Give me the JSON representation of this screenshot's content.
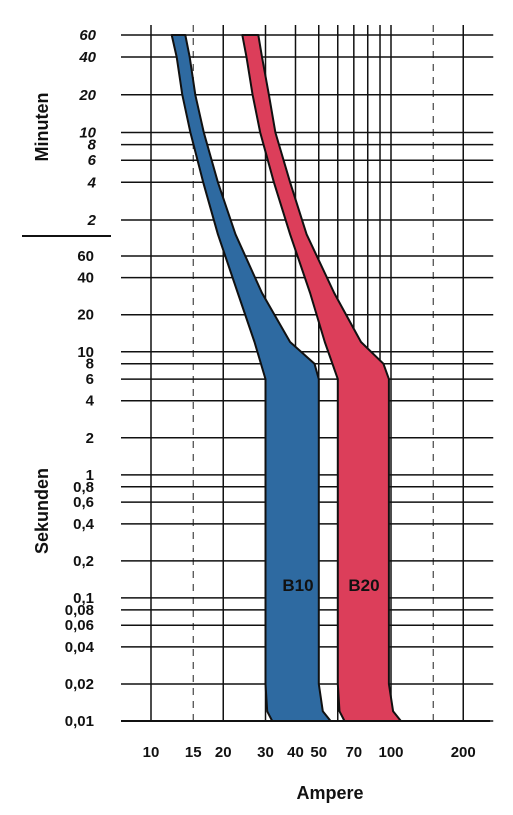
{
  "chart_data": {
    "type": "area",
    "title": "",
    "xlabel": "Ampere",
    "ylabel_top": "Minuten",
    "ylabel_bottom": "Sekunden",
    "x_scale": "log",
    "y_scale": "log",
    "xlim": [
      8,
      240
    ],
    "x_ticks": [
      {
        "value": 10,
        "label": "10"
      },
      {
        "value": 15,
        "label": "15"
      },
      {
        "value": 20,
        "label": "20"
      },
      {
        "value": 30,
        "label": "30"
      },
      {
        "value": 40,
        "label": "40"
      },
      {
        "value": 50,
        "label": "50"
      },
      {
        "value": 70,
        "label": "70"
      },
      {
        "value": 100,
        "label": "100"
      },
      {
        "value": 200,
        "label": "200"
      }
    ],
    "x_grid_solid": [
      10,
      20,
      30,
      40,
      50,
      60,
      70,
      80,
      90,
      100,
      200
    ],
    "x_grid_dashed": [
      15,
      150
    ],
    "y_ticks_minutes": [
      {
        "value": 3600,
        "label": "60"
      },
      {
        "value": 2400,
        "label": "40"
      },
      {
        "value": 1200,
        "label": "20"
      },
      {
        "value": 600,
        "label": "10"
      },
      {
        "value": 480,
        "label": "8"
      },
      {
        "value": 360,
        "label": "6"
      },
      {
        "value": 240,
        "label": "4"
      },
      {
        "value": 120,
        "label": "2"
      }
    ],
    "y_ticks_seconds": [
      {
        "value": 60,
        "label": "60"
      },
      {
        "value": 40,
        "label": "40"
      },
      {
        "value": 20,
        "label": "20"
      },
      {
        "value": 10,
        "label": "10"
      },
      {
        "value": 8,
        "label": "8"
      },
      {
        "value": 6,
        "label": "6"
      },
      {
        "value": 4,
        "label": "4"
      },
      {
        "value": 2,
        "label": "2"
      },
      {
        "value": 1,
        "label": "1"
      },
      {
        "value": 0.8,
        "label": "0,8"
      },
      {
        "value": 0.6,
        "label": "0,6"
      },
      {
        "value": 0.4,
        "label": "0,4"
      },
      {
        "value": 0.2,
        "label": "0,2"
      },
      {
        "value": 0.1,
        "label": "0,1"
      },
      {
        "value": 0.08,
        "label": "0,08"
      },
      {
        "value": 0.06,
        "label": "0,06"
      },
      {
        "value": 0.04,
        "label": "0,04"
      },
      {
        "value": 0.02,
        "label": "0,02"
      },
      {
        "value": 0.01,
        "label": "0,01"
      }
    ],
    "ylim_seconds": [
      0.01,
      3600
    ],
    "grid": true,
    "series": [
      {
        "name": "B10",
        "color": "#2e6aa1",
        "left_edge": [
          [
            12.2,
            3600
          ],
          [
            12.8,
            2400
          ],
          [
            13.5,
            1200
          ],
          [
            14.6,
            600
          ],
          [
            16.5,
            240
          ],
          [
            19.0,
            90
          ],
          [
            23.0,
            30
          ],
          [
            27.0,
            12
          ],
          [
            30.0,
            6
          ],
          [
            30.0,
            0.02
          ],
          [
            30.5,
            0.012
          ],
          [
            32.0,
            0.01
          ]
        ],
        "right_edge": [
          [
            13.9,
            3600
          ],
          [
            14.5,
            2400
          ],
          [
            15.3,
            1200
          ],
          [
            16.6,
            600
          ],
          [
            19.0,
            240
          ],
          [
            22.5,
            90
          ],
          [
            29.0,
            30
          ],
          [
            38.0,
            12
          ],
          [
            48.0,
            8
          ],
          [
            50.0,
            6
          ],
          [
            50.0,
            0.02
          ],
          [
            52.0,
            0.012
          ],
          [
            56.0,
            0.01
          ]
        ]
      },
      {
        "name": "B20",
        "color": "#dc3e5a",
        "left_edge": [
          [
            24.0,
            3600
          ],
          [
            25.0,
            2400
          ],
          [
            26.5,
            1200
          ],
          [
            28.5,
            600
          ],
          [
            32.5,
            240
          ],
          [
            38.0,
            90
          ],
          [
            46.0,
            30
          ],
          [
            53.0,
            12
          ],
          [
            60.0,
            6
          ],
          [
            60.0,
            0.02
          ],
          [
            61.0,
            0.012
          ],
          [
            64.0,
            0.01
          ]
        ],
        "right_edge": [
          [
            28.0,
            3600
          ],
          [
            29.0,
            2400
          ],
          [
            31.0,
            1200
          ],
          [
            33.0,
            600
          ],
          [
            38.0,
            240
          ],
          [
            44.5,
            90
          ],
          [
            58.0,
            30
          ],
          [
            75.0,
            12
          ],
          [
            93.0,
            8
          ],
          [
            98.0,
            6
          ],
          [
            98.0,
            0.02
          ],
          [
            102.0,
            0.012
          ],
          [
            110.0,
            0.01
          ]
        ]
      }
    ]
  }
}
